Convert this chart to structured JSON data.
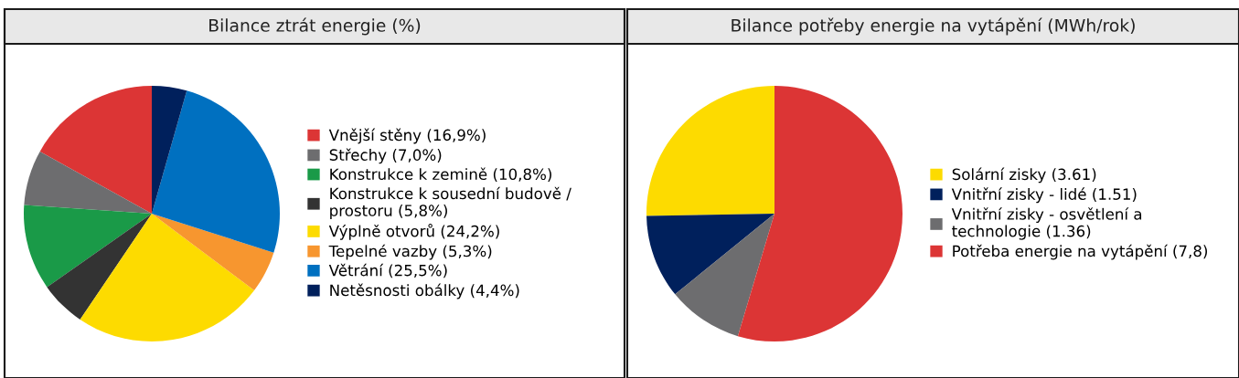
{
  "chart_data": [
    {
      "type": "pie",
      "title": "Bilance ztrát energie (%)",
      "legend": "right",
      "categories": [
        "Vnější stěny (16,9%)",
        "Střechy (7,0%)",
        "Konstrukce k zemině (10,8%)",
        "Konstrukce k sousední budově /\nprostoru (5,8%)",
        "Výplně otvorů (24,2%)",
        "Tepelné vazby (5,3%)",
        "Větrání (25,5%)",
        "Netěsnosti obálky (4,4%)"
      ],
      "values": [
        16.9,
        7.0,
        10.8,
        5.8,
        24.2,
        5.3,
        25.5,
        4.4
      ],
      "colors": [
        "#dc3535",
        "#6d6d6f",
        "#1a9a48",
        "#333333",
        "#fddb00",
        "#f7962f",
        "#0070c0",
        "#00205c"
      ]
    },
    {
      "type": "pie",
      "title": "Bilance potřeby energie na vytápění (MWh/rok)",
      "legend": "right",
      "categories": [
        "Solární zisky (3.61)",
        "Vnitřní zisky - lidé (1.51)",
        "Vnitřní zisky - osvětlení a\ntechnologie (1.36)",
        "Potřeba energie na vytápění (7,8)"
      ],
      "values": [
        3.61,
        1.51,
        1.36,
        7.8
      ],
      "colors": [
        "#fddb00",
        "#00205c",
        "#6d6d6f",
        "#dc3535"
      ]
    }
  ]
}
